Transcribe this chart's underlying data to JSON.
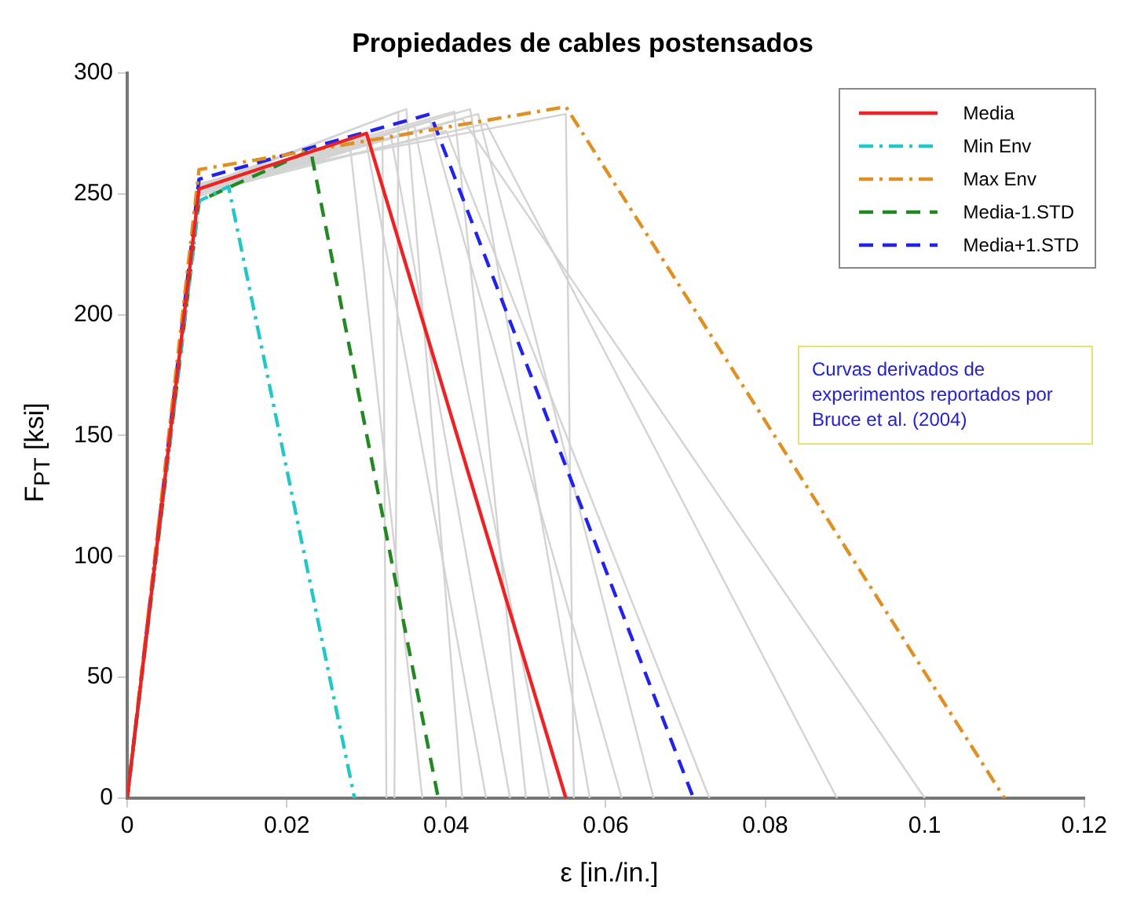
{
  "chart_data": {
    "type": "line",
    "title": "Propiedades de cables postensados",
    "xlabel": "ε [in./in.]",
    "ylabel": "F$_{PT}$ [ksi]",
    "xlim": [
      0,
      0.12
    ],
    "xticks": [
      0,
      0.02,
      0.04,
      0.06,
      0.08,
      {
        "value": 0.1,
        "label": "0.1"
      },
      0.12
    ],
    "ylim": [
      0,
      300
    ],
    "yticks": [
      0,
      50,
      100,
      150,
      200,
      250,
      300
    ],
    "grid": false,
    "legend": "top right",
    "marker": "none",
    "annotations": [
      "Curvas derivados de experimentos reportados por Bruce et al. (2004)"
    ],
    "series": [
      {
        "color": "#d3d3d3",
        "x": [
          0,
          0.009,
          0.032,
          0.0325
        ],
        "values": [
          0,
          250,
          272,
          0
        ]
      },
      {
        "color": "#d3d3d3",
        "x": [
          0,
          0.009,
          0.034,
          0.0335
        ],
        "values": [
          0,
          252,
          284,
          0
        ]
      },
      {
        "color": "#d3d3d3",
        "x": [
          0,
          0.009,
          0.028,
          0.037
        ],
        "values": [
          0,
          249,
          268,
          0
        ]
      },
      {
        "color": "#d3d3d3",
        "x": [
          0,
          0.009,
          0.035,
          0.042
        ],
        "values": [
          0,
          253,
          285,
          0
        ]
      },
      {
        "color": "#d3d3d3",
        "x": [
          0,
          0.009,
          0.03,
          0.045
        ],
        "values": [
          0,
          251,
          271,
          0
        ]
      },
      {
        "color": "#d3d3d3",
        "x": [
          0,
          0.009,
          0.033,
          0.048
        ],
        "values": [
          0,
          250,
          275,
          0
        ]
      },
      {
        "color": "#d3d3d3",
        "x": [
          0,
          0.009,
          0.041,
          0.05
        ],
        "values": [
          0,
          254,
          284,
          0
        ]
      },
      {
        "color": "#d3d3d3",
        "x": [
          0,
          0.009,
          0.036,
          0.053
        ],
        "values": [
          0,
          252,
          278,
          0
        ]
      },
      {
        "color": "#d3d3d3",
        "x": [
          0,
          0.009,
          0.043,
          0.058
        ],
        "values": [
          0,
          253,
          285,
          0
        ]
      },
      {
        "color": "#d3d3d3",
        "x": [
          0,
          0.009,
          0.038,
          0.062
        ],
        "values": [
          0,
          251,
          280,
          0
        ]
      },
      {
        "color": "#d3d3d3",
        "x": [
          0,
          0.009,
          0.044,
          0.066
        ],
        "values": [
          0,
          252,
          283,
          0
        ]
      },
      {
        "color": "#d3d3d3",
        "x": [
          0,
          0.009,
          0.04,
          0.073
        ],
        "values": [
          0,
          250,
          276,
          0
        ]
      },
      {
        "color": "#d3d3d3",
        "x": [
          0,
          0.009,
          0.045,
          0.089
        ],
        "values": [
          0,
          252,
          279,
          0
        ]
      },
      {
        "color": "#d3d3d3",
        "x": [
          0,
          0.009,
          0.055,
          0.056
        ],
        "values": [
          0,
          254,
          283,
          0
        ]
      },
      {
        "color": "#d3d3d3",
        "x": [
          0,
          0.009,
          0.042,
          0.1
        ],
        "values": [
          0,
          251,
          281,
          0
        ]
      },
      {
        "name": "Media",
        "color": "#ee2222",
        "line_style": "solid",
        "x": [
          0,
          0.009,
          0.03,
          0.055
        ],
        "values": [
          0,
          252,
          275,
          0
        ]
      },
      {
        "name": "Min Env",
        "color": "#22c8c8",
        "line_style": "dashdot",
        "x": [
          0,
          0.009,
          0.0127,
          0.0285
        ],
        "values": [
          0,
          247,
          253,
          0
        ]
      },
      {
        "name": "Max Env",
        "color": "#e09020",
        "line_style": "dashdot",
        "x": [
          0,
          0.009,
          0.055,
          0.11
        ],
        "values": [
          0,
          260,
          286,
          0
        ]
      },
      {
        "name": "Media-1.STD",
        "color": "#228822",
        "line_style": "dashed",
        "x": [
          0,
          0.009,
          0.023,
          0.039
        ],
        "values": [
          0,
          247,
          268,
          0
        ]
      },
      {
        "name": "Media+1.STD",
        "color": "#2222ee",
        "line_style": "dashed",
        "x": [
          0,
          0.009,
          0.038,
          0.071
        ],
        "values": [
          0,
          256,
          283,
          0
        ]
      }
    ]
  }
}
